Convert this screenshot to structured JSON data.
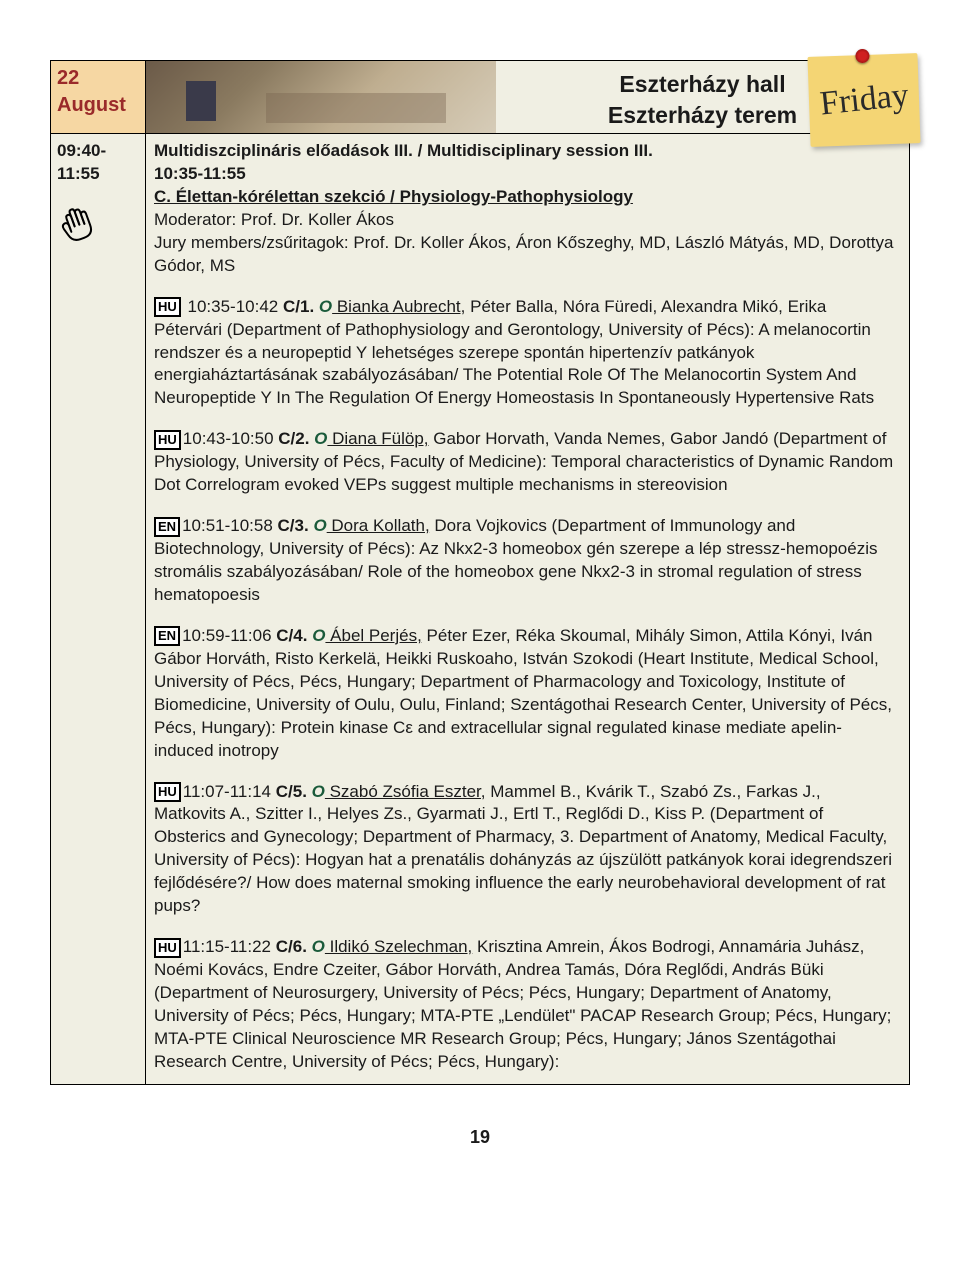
{
  "header": {
    "date_line1": "22",
    "date_line2": "August",
    "hall_line1": "Eszterházy hall",
    "hall_line2": "Eszterházy terem",
    "sticky_label": "Friday"
  },
  "session": {
    "time_slot": "09:40-11:55",
    "title": "Multidiszciplináris előadások III. / Multidisciplinary session III.",
    "sub_time": "10:35-11:55",
    "section": "C. Élettan-kórélettan szekció / Physiology-Pathophysiology",
    "moderator": "Moderator: Prof. Dr. Koller Ákos",
    "jury": "Jury members/zsűritagok: Prof. Dr. Koller Ákos, Áron Kőszeghy, MD, László Mátyás, MD, Dorottya Gódor, MS"
  },
  "abstracts": [
    {
      "lang": "HU",
      "time": " 10:35-10:42 ",
      "code": "C/1. ",
      "presenter": " Bianka Aubrecht,",
      "rest": " Péter Balla, Nóra Füredi, Alexandra Mikó, Erika Pétervári (Department of Pathophysiology and Gerontology, University of Pécs): A melanocortin rendszer és a neuropeptid Y lehetséges szerepe spontán hipertenzív patkányok energiaháztartásának szabályozásában/ The Potential Role Of The Melanocortin System And Neuropeptide Y In The Regulation Of Energy Homeostasis In Spontaneously Hypertensive Rats"
    },
    {
      "lang": "HU",
      "time": "10:43-10:50 ",
      "code": "C/2. ",
      "presenter": " Diana Fülöp,",
      "rest": " Gabor Horvath, Vanda Nemes, Gabor Jandó (Department of Physiology, University of Pécs, Faculty of Medicine):  Temporal characteristics of Dynamic Random Dot Correlogram evoked VEPs suggest multiple mechanisms in stereovision"
    },
    {
      "lang": "EN",
      "time": "10:51-10:58 ",
      "code": "C/3.  ",
      "presenter": " Dora Kollath,",
      "rest": " Dora Vojkovics (Department of Immunology and Biotechnology, University of Pécs): Az Nkx2-3 homeobox gén szerepe a lép stressz-hemopoézis stromális szabályozásában/ Role of the homeobox gene Nkx2-3 in stromal regulation of stress hematopoesis"
    },
    {
      "lang": "EN",
      "time": "10:59-11:06 ",
      "code": "C/4. ",
      "presenter": " Ábel Perjés,",
      "rest": " Péter Ezer, Réka Skoumal, Mihály Simon, Attila Kónyi, Iván Gábor Horváth, Risto Kerkelä, Heikki Ruskoaho, István Szokodi (Heart Institute, Medical School, University of Pécs, Pécs, Hungary; Department of Pharmacology and Toxicology, Institute of Biomedicine, University of Oulu, Oulu, Finland; Szentágothai Research Center, University of Pécs, Pécs, Hungary): Protein kinase Cε and extracellular signal regulated kinase mediate apelin-induced inotropy"
    },
    {
      "lang": "HU",
      "time": "11:07-11:14 ",
      "code": "C/5. ",
      "presenter": " Szabó Zsófia Eszter,",
      "rest": " Mammel B., Kvárik T., Szabó Zs., Farkas J., Matkovits A., Szitter I., Helyes Zs., Gyarmati J.,  Ertl T., Reglődi D., Kiss P. (Department of Obsterics and Gynecology;  Department of Pharmacy, 3. Department of Anatomy, Medical Faculty, University of Pécs): Hogyan hat a prenatális dohányzás az újszülött patkányok korai idegrendszeri fejlődésére?/ How does maternal smoking influence the early neurobehavioral development of rat pups?"
    },
    {
      "lang": "HU",
      "time": "11:15-11:22 ",
      "code": "C/6.  ",
      "presenter": " Ildikó Szelechman,",
      "rest": " Krisztina Amrein, Ákos Bodrogi, Annamária Juhász, Noémi Kovács,   Endre Czeiter, Gábor Horváth, Andrea Tamás, Dóra Reglődi, András Büki (Department of Neurosurgery, University of Pécs; Pécs, Hungary; Department of Anatomy, University of Pécs; Pécs, Hungary; MTA-PTE „Lendület\" PACAP Research Group; Pécs, Hungary;  MTA-PTE Clinical Neuroscience MR Research Group; Pécs, Hungary; János Szentágothai Research Centre, University of Pécs; Pécs, Hungary):"
    }
  ],
  "page_number": "19",
  "colors": {
    "date_bg": "#f6d7a3",
    "date_text": "#9a2a2a",
    "body_bg": "#f0efe3",
    "sticky_bg": "#f4d574",
    "oral_color": "#1a5a3a"
  }
}
